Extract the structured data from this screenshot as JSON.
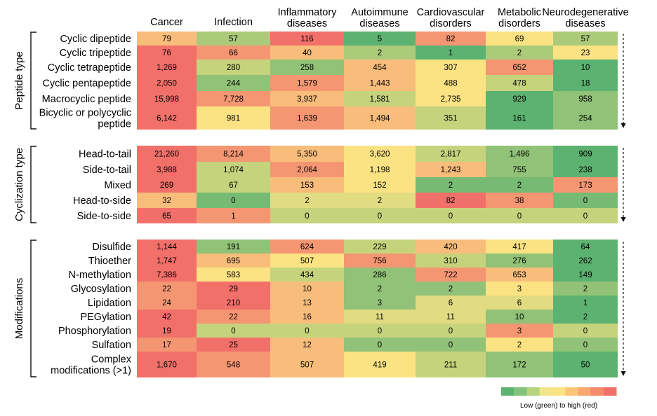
{
  "chart_data": {
    "type": "heatmap",
    "columns": [
      [
        "Cancer"
      ],
      [
        "Infection"
      ],
      [
        "Inflammatory",
        "diseases"
      ],
      [
        "Autoimmune",
        "diseases"
      ],
      [
        "Cardiovascular",
        "disorders"
      ],
      [
        "Metabolic",
        "disorders"
      ],
      [
        "Neurodegenerative",
        "diseases"
      ]
    ],
    "groups": [
      {
        "name": "Peptide type",
        "rows": [
          {
            "label": [
              "Cyclic dipeptide"
            ],
            "values": [
              79,
              57,
              116,
              5,
              82,
              69,
              57
            ]
          },
          {
            "label": [
              "Cyclic tripeptide"
            ],
            "values": [
              76,
              66,
              40,
              2,
              1,
              2,
              23
            ]
          },
          {
            "label": [
              "Cyclic tetrapeptide"
            ],
            "values": [
              1269,
              280,
              258,
              454,
              307,
              652,
              10
            ]
          },
          {
            "label": [
              "Cyclic pentapeptide"
            ],
            "values": [
              2050,
              244,
              1579,
              1443,
              488,
              478,
              18
            ]
          },
          {
            "label": [
              "Macrocyclic peptide"
            ],
            "values": [
              15998,
              7728,
              3937,
              1581,
              2735,
              929,
              958
            ]
          },
          {
            "label": [
              "Bicyclic or polycyclic",
              "peptide"
            ],
            "values": [
              6142,
              981,
              1639,
              1494,
              351,
              161,
              254
            ]
          }
        ]
      },
      {
        "name": "Cyclization type",
        "rows": [
          {
            "label": [
              "Head-to-tail"
            ],
            "values": [
              21260,
              8214,
              5350,
              3620,
              2817,
              1496,
              909
            ]
          },
          {
            "label": [
              "Side-to-tail"
            ],
            "values": [
              3988,
              1074,
              2064,
              1198,
              1243,
              755,
              238
            ]
          },
          {
            "label": [
              "Mixed"
            ],
            "values": [
              269,
              67,
              153,
              152,
              2,
              2,
              173
            ]
          },
          {
            "label": [
              "Head-to-side"
            ],
            "values": [
              32,
              0,
              2,
              2,
              82,
              38,
              0
            ]
          },
          {
            "label": [
              "Side-to-side"
            ],
            "values": [
              65,
              1,
              0,
              0,
              0,
              0,
              0
            ]
          }
        ]
      },
      {
        "name": "Modifications",
        "rows": [
          {
            "label": [
              "Disulfide"
            ],
            "values": [
              1144,
              191,
              624,
              229,
              420,
              417,
              64
            ]
          },
          {
            "label": [
              "Thioether"
            ],
            "values": [
              1747,
              695,
              507,
              756,
              310,
              276,
              262
            ]
          },
          {
            "label": [
              "N-methylation"
            ],
            "values": [
              7386,
              583,
              434,
              286,
              722,
              653,
              149
            ]
          },
          {
            "label": [
              "Glycosylation"
            ],
            "values": [
              22,
              29,
              10,
              2,
              2,
              3,
              2
            ]
          },
          {
            "label": [
              "Lipidation"
            ],
            "values": [
              24,
              210,
              13,
              3,
              6,
              6,
              1
            ]
          },
          {
            "label": [
              "PEGylation"
            ],
            "values": [
              42,
              22,
              16,
              11,
              11,
              10,
              2
            ]
          },
          {
            "label": [
              "Phosphorylation"
            ],
            "values": [
              19,
              0,
              0,
              0,
              0,
              3,
              0
            ]
          },
          {
            "label": [
              "Sulfation"
            ],
            "values": [
              17,
              25,
              12,
              0,
              0,
              2,
              0
            ]
          },
          {
            "label": [
              "Complex",
              "modifications (>1)"
            ],
            "values": [
              1670,
              548,
              507,
              419,
              211,
              172,
              50
            ]
          }
        ]
      }
    ],
    "color_scale": {
      "low": "#5cb270",
      "mid": "#fbe384",
      "high": "#f2706a",
      "stops": [
        "#5cb270",
        "#82c27a",
        "#b6d47e",
        "#f4e48a",
        "#fbe384",
        "#fbc777",
        "#f9a870",
        "#f68a6c",
        "#f2706a"
      ],
      "caption": "Low (green) to high (red)"
    }
  }
}
